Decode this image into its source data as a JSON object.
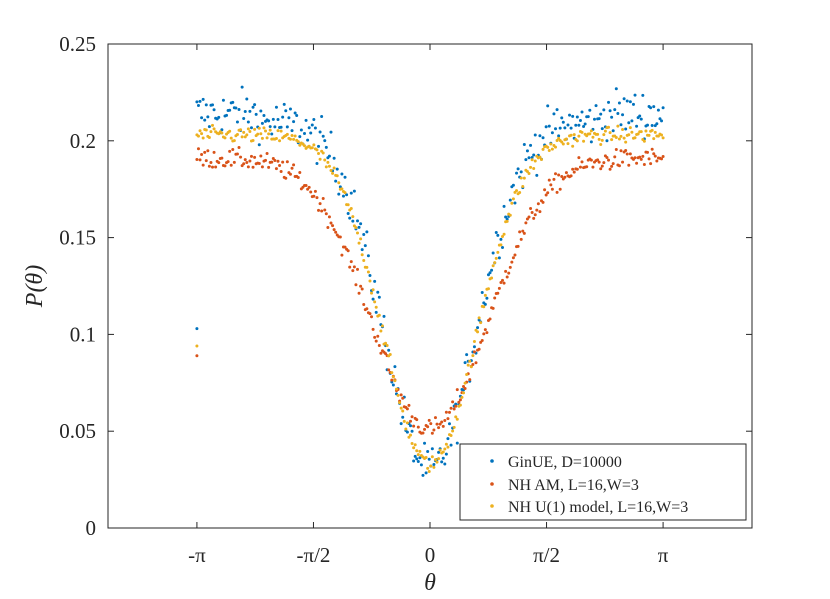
{
  "chart_data": {
    "type": "scatter",
    "title": "",
    "xlabel": "θ",
    "ylabel": "P(θ)",
    "xlim": [
      -4.34,
      4.34
    ],
    "ylim": [
      0,
      0.25
    ],
    "xticks": [
      {
        "value": -3.14159,
        "label": "-π"
      },
      {
        "value": -1.5708,
        "label": "-π/2"
      },
      {
        "value": 0,
        "label": "0"
      },
      {
        "value": 1.5708,
        "label": "π/2"
      },
      {
        "value": 3.14159,
        "label": "π"
      }
    ],
    "yticks": [
      {
        "value": 0,
        "label": "0"
      },
      {
        "value": 0.05,
        "label": "0.05"
      },
      {
        "value": 0.1,
        "label": "0.1"
      },
      {
        "value": 0.15,
        "label": "0.15"
      },
      {
        "value": 0.2,
        "label": "0.2"
      },
      {
        "value": 0.25,
        "label": "0.25"
      }
    ],
    "grid": false,
    "legend_position": "bottom-right",
    "series": [
      {
        "name": "GinUE, D=10000",
        "color": "#0072BD",
        "min_at_zero": 0.03,
        "plateau": 0.21,
        "width": 0.62,
        "noise": 0.006,
        "edge_value": 0.103
      },
      {
        "name": "NH AM, L=16,W=3",
        "color": "#D95319",
        "min_at_zero": 0.051,
        "plateau": 0.191,
        "width": 0.78,
        "noise": 0.0025,
        "edge_value": 0.089
      },
      {
        "name": "NH U(1) model, L=16,W=3",
        "color": "#EDB120",
        "min_at_zero": 0.033,
        "plateau": 0.203,
        "width": 0.63,
        "noise": 0.002,
        "edge_value": 0.094
      }
    ]
  }
}
